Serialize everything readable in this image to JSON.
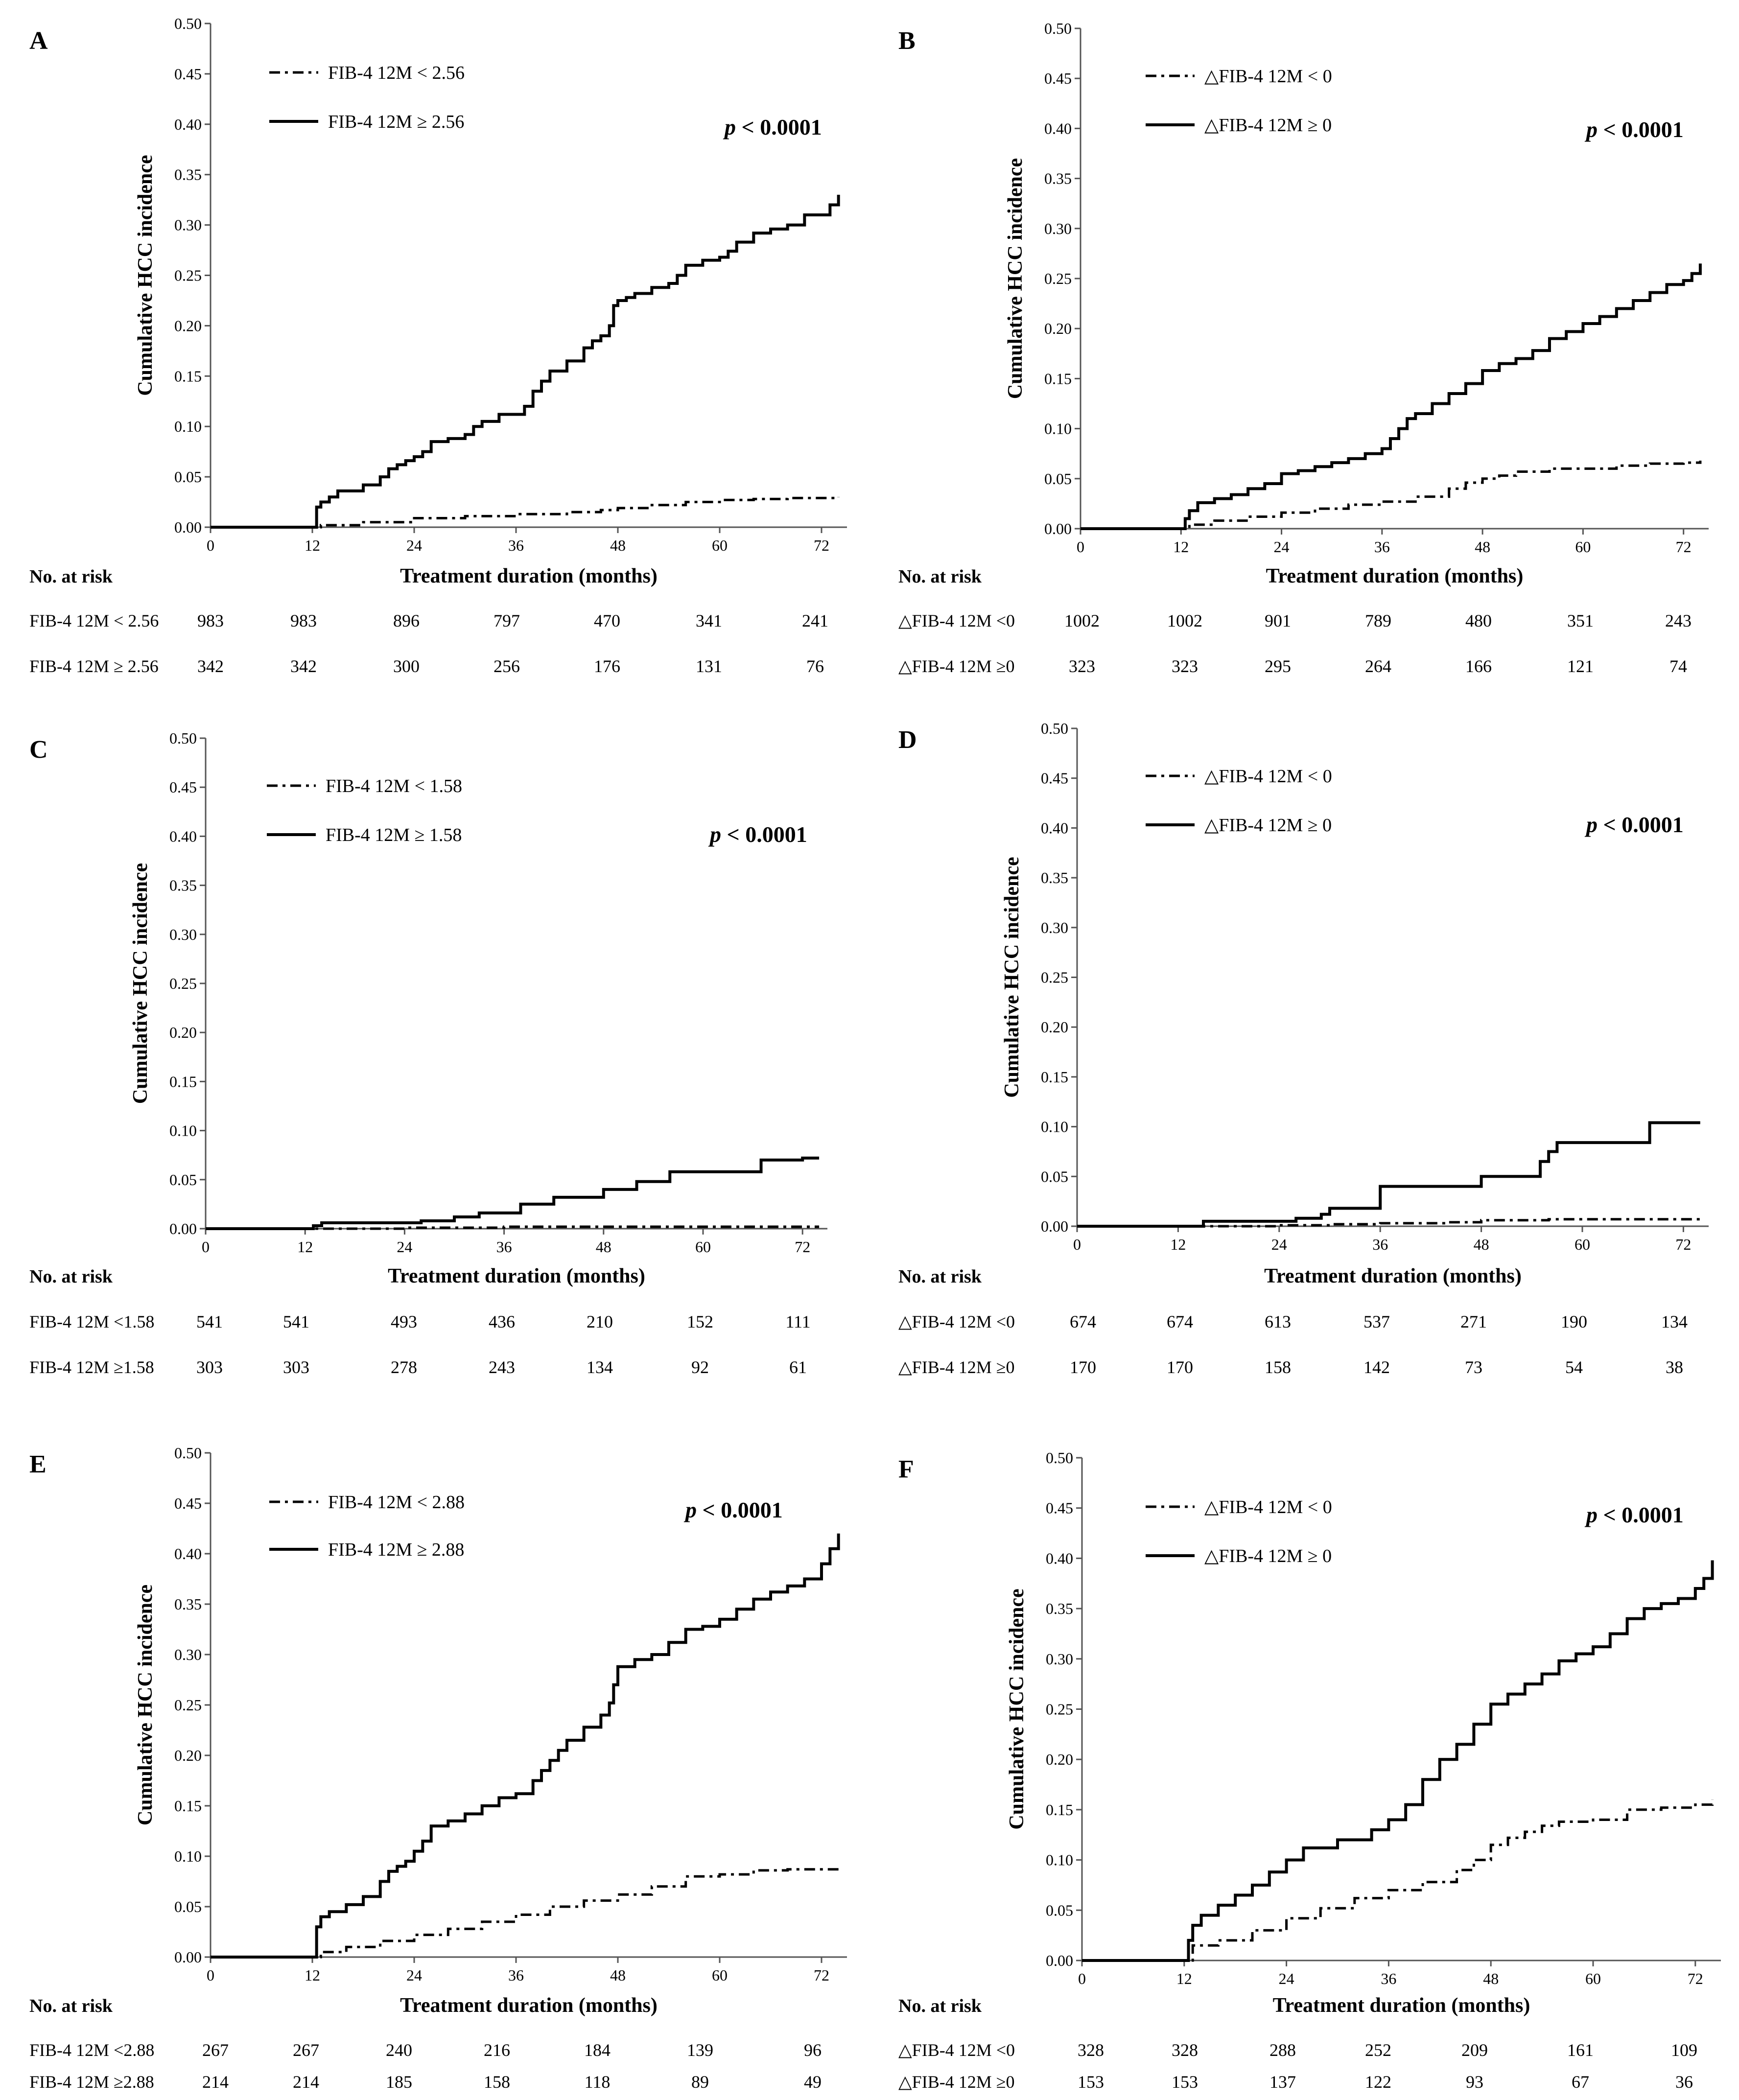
{
  "figure": {
    "xlabel": "Treatment duration (months)",
    "ylabel": "Cumulative HCC incidence",
    "risk_header": "No. at risk",
    "p_prefix": "p",
    "p_suffix": " < 0.0001",
    "line_color": "#000000"
  },
  "chart_data": [
    {
      "panel": "A",
      "type": "line",
      "xlim": [
        0,
        75
      ],
      "ylim": [
        0,
        0.5
      ],
      "xticks": [
        0,
        12,
        24,
        36,
        48,
        60,
        72
      ],
      "yticks": [
        "0.00",
        "0.05",
        "0.10",
        "0.15",
        "0.20",
        "0.25",
        "0.30",
        "0.35",
        "0.40",
        "0.45",
        "0.50"
      ],
      "legend_placement": "top-left",
      "series": [
        {
          "name": "FIB-4 12M < 2.56",
          "style": "dashdot",
          "x": [
            0,
            12,
            13,
            18,
            24,
            30,
            36,
            42,
            46,
            48,
            52,
            56,
            60,
            64,
            68,
            72,
            74
          ],
          "y": [
            0,
            0,
            0.002,
            0.005,
            0.009,
            0.011,
            0.013,
            0.015,
            0.017,
            0.019,
            0.022,
            0.025,
            0.027,
            0.028,
            0.029,
            0.029,
            0.03
          ]
        },
        {
          "name": "FIB-4 12M ≥ 2.56",
          "style": "solid",
          "x": [
            0,
            12,
            12.5,
            13,
            14,
            15,
            16,
            18,
            20,
            21,
            22,
            23,
            24,
            25,
            26,
            28,
            30,
            31,
            32,
            34,
            36,
            37,
            38,
            39,
            40,
            42,
            44,
            45,
            46,
            47,
            47.5,
            48,
            49,
            50,
            52,
            54,
            55,
            56,
            58,
            60,
            61,
            62,
            64,
            66,
            68,
            70,
            72,
            73,
            74
          ],
          "y": [
            0,
            0,
            0.02,
            0.025,
            0.03,
            0.036,
            0.036,
            0.042,
            0.05,
            0.058,
            0.062,
            0.066,
            0.07,
            0.075,
            0.085,
            0.088,
            0.092,
            0.1,
            0.105,
            0.112,
            0.112,
            0.12,
            0.135,
            0.145,
            0.155,
            0.165,
            0.178,
            0.185,
            0.19,
            0.2,
            0.22,
            0.225,
            0.228,
            0.232,
            0.238,
            0.242,
            0.25,
            0.26,
            0.265,
            0.268,
            0.274,
            0.283,
            0.292,
            0.296,
            0.3,
            0.31,
            0.31,
            0.32,
            0.33
          ]
        }
      ],
      "risk_rows": [
        {
          "label": "FIB-4 12M < 2.56",
          "values": [
            "983",
            "983",
            "896",
            "797",
            "470",
            "341",
            "241"
          ]
        },
        {
          "label": "FIB-4 12M ≥ 2.56",
          "values": [
            "342",
            "342",
            "300",
            "256",
            "176",
            "131",
            "76"
          ]
        }
      ]
    },
    {
      "panel": "B",
      "type": "line",
      "xlim": [
        0,
        75
      ],
      "ylim": [
        0,
        0.5
      ],
      "xticks": [
        0,
        12,
        24,
        36,
        48,
        60,
        72
      ],
      "yticks": [
        "0.00",
        "0.05",
        "0.10",
        "0.15",
        "0.20",
        "0.25",
        "0.30",
        "0.35",
        "0.40",
        "0.45",
        "0.50"
      ],
      "legend_placement": "top-left",
      "series": [
        {
          "name": "△FIB-4 12M < 0",
          "style": "dashdot",
          "x": [
            0,
            12,
            13,
            16,
            20,
            24,
            28,
            32,
            36,
            40,
            44,
            46,
            48,
            50,
            52,
            56,
            60,
            64,
            68,
            72,
            74
          ],
          "y": [
            0,
            0,
            0.004,
            0.008,
            0.012,
            0.016,
            0.02,
            0.024,
            0.027,
            0.032,
            0.04,
            0.046,
            0.05,
            0.053,
            0.057,
            0.06,
            0.06,
            0.063,
            0.065,
            0.066,
            0.068
          ]
        },
        {
          "name": "△FIB-4 12M ≥ 0",
          "style": "solid",
          "x": [
            0,
            12,
            12.5,
            13,
            14,
            16,
            18,
            20,
            22,
            24,
            26,
            28,
            30,
            32,
            34,
            36,
            37,
            38,
            39,
            40,
            42,
            44,
            46,
            48,
            50,
            52,
            54,
            56,
            58,
            60,
            62,
            64,
            66,
            68,
            70,
            72,
            73,
            74
          ],
          "y": [
            0,
            0,
            0.01,
            0.018,
            0.026,
            0.03,
            0.034,
            0.04,
            0.045,
            0.055,
            0.058,
            0.062,
            0.066,
            0.07,
            0.075,
            0.08,
            0.09,
            0.1,
            0.11,
            0.115,
            0.125,
            0.135,
            0.145,
            0.158,
            0.165,
            0.17,
            0.178,
            0.19,
            0.197,
            0.205,
            0.212,
            0.22,
            0.228,
            0.236,
            0.244,
            0.248,
            0.255,
            0.265
          ]
        }
      ],
      "risk_rows": [
        {
          "label": "△FIB-4 12M <0",
          "values": [
            "1002",
            "1002",
            "901",
            "789",
            "480",
            "351",
            "243"
          ]
        },
        {
          "label": "△FIB-4 12M ≥0",
          "values": [
            "323",
            "323",
            "295",
            "264",
            "166",
            "121",
            "74"
          ]
        }
      ]
    },
    {
      "panel": "C",
      "type": "line",
      "xlim": [
        0,
        75
      ],
      "ylim": [
        0,
        0.5
      ],
      "xticks": [
        0,
        12,
        24,
        36,
        48,
        60,
        72
      ],
      "yticks": [
        "0.00",
        "0.05",
        "0.10",
        "0.15",
        "0.20",
        "0.25",
        "0.30",
        "0.35",
        "0.40",
        "0.45",
        "0.50"
      ],
      "legend_placement": "top-left",
      "series": [
        {
          "name": "FIB-4 12M < 1.58",
          "style": "dashdot",
          "x": [
            0,
            12,
            24,
            36,
            48,
            60,
            74
          ],
          "y": [
            0,
            0,
            0.001,
            0.002,
            0.002,
            0.002,
            0.002
          ]
        },
        {
          "name": "FIB-4 12M ≥ 1.58",
          "style": "solid",
          "x": [
            0,
            12,
            13,
            14,
            20,
            26,
            30,
            33,
            38,
            42,
            48,
            52,
            56,
            62,
            67,
            72,
            74
          ],
          "y": [
            0,
            0,
            0.003,
            0.006,
            0.006,
            0.008,
            0.012,
            0.016,
            0.025,
            0.032,
            0.04,
            0.048,
            0.058,
            0.058,
            0.07,
            0.072,
            0.072
          ]
        }
      ],
      "risk_rows": [
        {
          "label": "FIB-4 12M <1.58",
          "values": [
            "541",
            "541",
            "493",
            "436",
            "210",
            "152",
            "111"
          ]
        },
        {
          "label": "FIB-4 12M ≥1.58",
          "values": [
            "303",
            "303",
            "278",
            "243",
            "134",
            "92",
            "61"
          ]
        }
      ]
    },
    {
      "panel": "D",
      "type": "line",
      "xlim": [
        0,
        75
      ],
      "ylim": [
        0,
        0.5
      ],
      "xticks": [
        0,
        12,
        24,
        36,
        48,
        60,
        72
      ],
      "yticks": [
        "0.00",
        "0.05",
        "0.10",
        "0.15",
        "0.20",
        "0.25",
        "0.30",
        "0.35",
        "0.40",
        "0.45",
        "0.50"
      ],
      "legend_placement": "top-left",
      "series": [
        {
          "name": "△FIB-4 12M < 0",
          "style": "dashdot",
          "x": [
            0,
            12,
            24,
            30,
            36,
            44,
            48,
            56,
            64,
            74
          ],
          "y": [
            0,
            0,
            0.001,
            0.002,
            0.003,
            0.004,
            0.006,
            0.007,
            0.007,
            0.007
          ]
        },
        {
          "name": "△FIB-4 12M ≥ 0",
          "style": "solid",
          "x": [
            0,
            12,
            15,
            20,
            26,
            29,
            30,
            36,
            42,
            48,
            55,
            56,
            57,
            62,
            68,
            74
          ],
          "y": [
            0,
            0,
            0.005,
            0.005,
            0.008,
            0.012,
            0.018,
            0.04,
            0.04,
            0.05,
            0.065,
            0.075,
            0.084,
            0.084,
            0.104,
            0.104
          ]
        }
      ],
      "risk_rows": [
        {
          "label": "△FIB-4 12M <0",
          "values": [
            "674",
            "674",
            "613",
            "537",
            "271",
            "190",
            "134"
          ]
        },
        {
          "label": "△FIB-4 12M ≥0",
          "values": [
            "170",
            "170",
            "158",
            "142",
            "73",
            "54",
            "38"
          ]
        }
      ]
    },
    {
      "panel": "E",
      "type": "line",
      "xlim": [
        0,
        75
      ],
      "ylim": [
        0,
        0.5
      ],
      "xticks": [
        0,
        12,
        24,
        36,
        48,
        60,
        72
      ],
      "yticks": [
        "0.00",
        "0.05",
        "0.10",
        "0.15",
        "0.20",
        "0.25",
        "0.30",
        "0.35",
        "0.40",
        "0.45",
        "0.50"
      ],
      "legend_placement": "top-left",
      "series": [
        {
          "name": "FIB-4 12M < 2.88",
          "style": "dashdot",
          "x": [
            0,
            12,
            13,
            16,
            20,
            24,
            28,
            32,
            36,
            40,
            44,
            48,
            52,
            56,
            60,
            64,
            68,
            74
          ],
          "y": [
            0,
            0,
            0.005,
            0.01,
            0.016,
            0.022,
            0.028,
            0.035,
            0.042,
            0.05,
            0.056,
            0.062,
            0.07,
            0.08,
            0.082,
            0.086,
            0.087,
            0.087
          ]
        },
        {
          "name": "FIB-4 12M ≥ 2.88",
          "style": "solid",
          "x": [
            0,
            12,
            12.5,
            13,
            14,
            16,
            18,
            20,
            21,
            22,
            23,
            24,
            25,
            26,
            28,
            30,
            32,
            34,
            36,
            38,
            39,
            40,
            41,
            42,
            44,
            46,
            47,
            47.5,
            48,
            50,
            52,
            54,
            56,
            58,
            60,
            62,
            64,
            66,
            68,
            70,
            72,
            73,
            74
          ],
          "y": [
            0,
            0,
            0.03,
            0.04,
            0.045,
            0.052,
            0.06,
            0.075,
            0.085,
            0.09,
            0.095,
            0.105,
            0.115,
            0.13,
            0.135,
            0.142,
            0.15,
            0.158,
            0.162,
            0.175,
            0.185,
            0.195,
            0.205,
            0.215,
            0.228,
            0.24,
            0.252,
            0.27,
            0.288,
            0.295,
            0.3,
            0.312,
            0.325,
            0.328,
            0.335,
            0.345,
            0.355,
            0.362,
            0.368,
            0.375,
            0.39,
            0.405,
            0.42
          ]
        }
      ],
      "risk_rows": [
        {
          "label": "FIB-4 12M <2.88",
          "values": [
            "267",
            "267",
            "240",
            "216",
            "184",
            "139",
            "96"
          ]
        },
        {
          "label": "FIB-4 12M ≥2.88",
          "values": [
            "214",
            "214",
            "185",
            "158",
            "118",
            "89",
            "49"
          ]
        }
      ]
    },
    {
      "panel": "F",
      "type": "line",
      "xlim": [
        0,
        75
      ],
      "ylim": [
        0,
        0.5
      ],
      "xticks": [
        0,
        12,
        24,
        36,
        48,
        60,
        72
      ],
      "yticks": [
        "0.00",
        "0.05",
        "0.10",
        "0.15",
        "0.20",
        "0.25",
        "0.30",
        "0.35",
        "0.40",
        "0.45",
        "0.50"
      ],
      "legend_placement": "top-left",
      "series": [
        {
          "name": "△FIB-4 12M < 0",
          "style": "dashdot",
          "x": [
            0,
            12,
            13,
            16,
            20,
            24,
            28,
            32,
            36,
            40,
            44,
            46,
            48,
            50,
            52,
            54,
            56,
            60,
            64,
            68,
            72,
            74
          ],
          "y": [
            0,
            0,
            0.015,
            0.02,
            0.03,
            0.042,
            0.052,
            0.062,
            0.07,
            0.078,
            0.09,
            0.1,
            0.115,
            0.122,
            0.128,
            0.134,
            0.138,
            0.14,
            0.15,
            0.152,
            0.155,
            0.16
          ]
        },
        {
          "name": "△FIB-4 12M ≥ 0",
          "style": "solid",
          "x": [
            0,
            12,
            12.5,
            13,
            14,
            16,
            18,
            20,
            22,
            24,
            26,
            30,
            34,
            36,
            38,
            40,
            42,
            44,
            46,
            48,
            50,
            52,
            54,
            56,
            58,
            60,
            62,
            64,
            66,
            68,
            70,
            72,
            73,
            74
          ],
          "y": [
            0,
            0,
            0.02,
            0.035,
            0.045,
            0.055,
            0.065,
            0.075,
            0.088,
            0.1,
            0.112,
            0.12,
            0.13,
            0.14,
            0.155,
            0.18,
            0.2,
            0.215,
            0.235,
            0.255,
            0.265,
            0.275,
            0.285,
            0.298,
            0.305,
            0.312,
            0.325,
            0.34,
            0.35,
            0.355,
            0.36,
            0.37,
            0.38,
            0.398
          ]
        }
      ],
      "risk_rows": [
        {
          "label": "△FIB-4 12M <0",
          "values": [
            "328",
            "328",
            "288",
            "252",
            "209",
            "161",
            "109"
          ]
        },
        {
          "label": "△FIB-4 12M ≥0",
          "values": [
            "153",
            "153",
            "137",
            "122",
            "93",
            "67",
            "36"
          ]
        }
      ]
    }
  ]
}
